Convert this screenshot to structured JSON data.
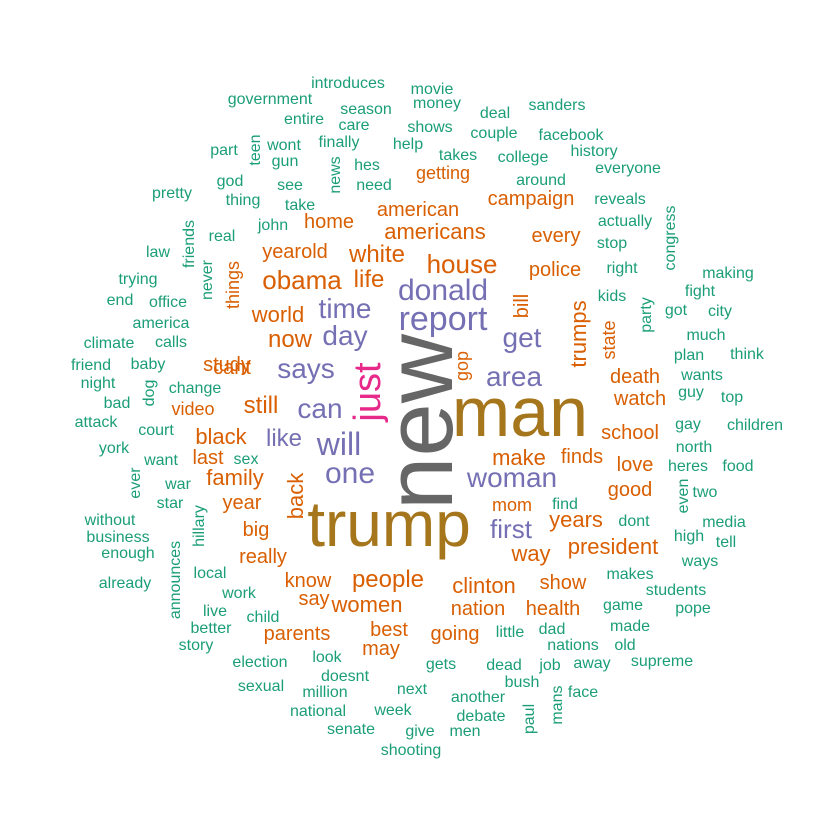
{
  "chart_data": {
    "type": "wordcloud",
    "title": "",
    "colors": {
      "tier1": "#666666",
      "tier2": "#a6761d",
      "tier3": "#e7298a",
      "tier4": "#7570b3",
      "tier5": "#d95f02",
      "tier6": "#1b9e77"
    },
    "words": [
      {
        "text": "new",
        "tier": "tier1"
      },
      {
        "text": "man",
        "tier": "tier2"
      },
      {
        "text": "trump",
        "tier": "tier2"
      },
      {
        "text": "just",
        "tier": "tier3"
      },
      {
        "text": "report",
        "tier": "tier4"
      },
      {
        "text": "donald",
        "tier": "tier4"
      },
      {
        "text": "says",
        "tier": "tier4"
      },
      {
        "text": "will",
        "tier": "tier4"
      },
      {
        "text": "one",
        "tier": "tier4"
      },
      {
        "text": "woman",
        "tier": "tier4"
      },
      {
        "text": "can",
        "tier": "tier4"
      },
      {
        "text": "time",
        "tier": "tier4"
      },
      {
        "text": "day",
        "tier": "tier4"
      },
      {
        "text": "get",
        "tier": "tier4"
      },
      {
        "text": "area",
        "tier": "tier4"
      },
      {
        "text": "like",
        "tier": "tier4"
      },
      {
        "text": "first",
        "tier": "tier4"
      },
      {
        "text": "trumps",
        "tier": "tier5"
      },
      {
        "text": "obama",
        "tier": "tier5"
      },
      {
        "text": "house",
        "tier": "tier5"
      },
      {
        "text": "life",
        "tier": "tier5"
      },
      {
        "text": "white",
        "tier": "tier5"
      },
      {
        "text": "now",
        "tier": "tier5"
      },
      {
        "text": "world",
        "tier": "tier5"
      },
      {
        "text": "still",
        "tier": "tier5"
      },
      {
        "text": "people",
        "tier": "tier5"
      },
      {
        "text": "women",
        "tier": "tier5"
      },
      {
        "text": "make",
        "tier": "tier5"
      },
      {
        "text": "clinton",
        "tier": "tier5"
      },
      {
        "text": "back",
        "tier": "tier5"
      },
      {
        "text": "family",
        "tier": "tier5"
      },
      {
        "text": "black",
        "tier": "tier5"
      },
      {
        "text": "years",
        "tier": "tier5"
      },
      {
        "text": "president",
        "tier": "tier5"
      },
      {
        "text": "way",
        "tier": "tier5"
      },
      {
        "text": "americans",
        "tier": "tier5"
      },
      {
        "text": "american",
        "tier": "tier5"
      },
      {
        "text": "campaign",
        "tier": "tier5"
      },
      {
        "text": "yearold",
        "tier": "tier5"
      },
      {
        "text": "home",
        "tier": "tier5"
      },
      {
        "text": "study",
        "tier": "tier5"
      },
      {
        "text": "video",
        "tier": "tier5"
      },
      {
        "text": "police",
        "tier": "tier5"
      },
      {
        "text": "every",
        "tier": "tier5"
      },
      {
        "text": "bill",
        "tier": "tier5"
      },
      {
        "text": "death",
        "tier": "tier5"
      },
      {
        "text": "watch",
        "tier": "tier5"
      },
      {
        "text": "school",
        "tier": "tier5"
      },
      {
        "text": "love",
        "tier": "tier5"
      },
      {
        "text": "good",
        "tier": "tier5"
      },
      {
        "text": "finds",
        "tier": "tier5"
      },
      {
        "text": "show",
        "tier": "tier5"
      },
      {
        "text": "health",
        "tier": "tier5"
      },
      {
        "text": "nation",
        "tier": "tier5"
      },
      {
        "text": "going",
        "tier": "tier5"
      },
      {
        "text": "best",
        "tier": "tier5"
      },
      {
        "text": "may",
        "tier": "tier5"
      },
      {
        "text": "parents",
        "tier": "tier5"
      },
      {
        "text": "know",
        "tier": "tier5"
      },
      {
        "text": "say",
        "tier": "tier5"
      },
      {
        "text": "really",
        "tier": "tier5"
      },
      {
        "text": "big",
        "tier": "tier5"
      },
      {
        "text": "year",
        "tier": "tier5"
      },
      {
        "text": "last",
        "tier": "tier5"
      },
      {
        "text": "cant",
        "tier": "tier5"
      },
      {
        "text": "things",
        "tier": "tier5"
      },
      {
        "text": "getting",
        "tier": "tier5"
      },
      {
        "text": "gop",
        "tier": "tier5"
      },
      {
        "text": "mom",
        "tier": "tier5"
      },
      {
        "text": "state",
        "tier": "tier5"
      },
      {
        "text": "introduces",
        "tier": "tier6"
      },
      {
        "text": "movie",
        "tier": "tier6"
      },
      {
        "text": "government",
        "tier": "tier6"
      },
      {
        "text": "money",
        "tier": "tier6"
      },
      {
        "text": "season",
        "tier": "tier6"
      },
      {
        "text": "deal",
        "tier": "tier6"
      },
      {
        "text": "sanders",
        "tier": "tier6"
      },
      {
        "text": "entire",
        "tier": "tier6"
      },
      {
        "text": "care",
        "tier": "tier6"
      },
      {
        "text": "shows",
        "tier": "tier6"
      },
      {
        "text": "couple",
        "tier": "tier6"
      },
      {
        "text": "facebook",
        "tier": "tier6"
      },
      {
        "text": "wont",
        "tier": "tier6"
      },
      {
        "text": "finally",
        "tier": "tier6"
      },
      {
        "text": "help",
        "tier": "tier6"
      },
      {
        "text": "takes",
        "tier": "tier6"
      },
      {
        "text": "college",
        "tier": "tier6"
      },
      {
        "text": "history",
        "tier": "tier6"
      },
      {
        "text": "part",
        "tier": "tier6"
      },
      {
        "text": "teen",
        "tier": "tier6"
      },
      {
        "text": "gun",
        "tier": "tier6"
      },
      {
        "text": "hes",
        "tier": "tier6"
      },
      {
        "text": "everyone",
        "tier": "tier6"
      },
      {
        "text": "news",
        "tier": "tier6"
      },
      {
        "text": "god",
        "tier": "tier6"
      },
      {
        "text": "need",
        "tier": "tier6"
      },
      {
        "text": "around",
        "tier": "tier6"
      },
      {
        "text": "pretty",
        "tier": "tier6"
      },
      {
        "text": "thing",
        "tier": "tier6"
      },
      {
        "text": "see",
        "tier": "tier6"
      },
      {
        "text": "take",
        "tier": "tier6"
      },
      {
        "text": "reveals",
        "tier": "tier6"
      },
      {
        "text": "congress",
        "tier": "tier6"
      },
      {
        "text": "friends",
        "tier": "tier6"
      },
      {
        "text": "john",
        "tier": "tier6"
      },
      {
        "text": "actually",
        "tier": "tier6"
      },
      {
        "text": "real",
        "tier": "tier6"
      },
      {
        "text": "law",
        "tier": "tier6"
      },
      {
        "text": "stop",
        "tier": "tier6"
      },
      {
        "text": "never",
        "tier": "tier6"
      },
      {
        "text": "right",
        "tier": "tier6"
      },
      {
        "text": "making",
        "tier": "tier6"
      },
      {
        "text": "trying",
        "tier": "tier6"
      },
      {
        "text": "fight",
        "tier": "tier6"
      },
      {
        "text": "end",
        "tier": "tier6"
      },
      {
        "text": "office",
        "tier": "tier6"
      },
      {
        "text": "kids",
        "tier": "tier6"
      },
      {
        "text": "party",
        "tier": "tier6"
      },
      {
        "text": "got",
        "tier": "tier6"
      },
      {
        "text": "city",
        "tier": "tier6"
      },
      {
        "text": "america",
        "tier": "tier6"
      },
      {
        "text": "climate",
        "tier": "tier6"
      },
      {
        "text": "calls",
        "tier": "tier6"
      },
      {
        "text": "much",
        "tier": "tier6"
      },
      {
        "text": "baby",
        "tier": "tier6"
      },
      {
        "text": "plan",
        "tier": "tier6"
      },
      {
        "text": "think",
        "tier": "tier6"
      },
      {
        "text": "friend",
        "tier": "tier6"
      },
      {
        "text": "night",
        "tier": "tier6"
      },
      {
        "text": "dog",
        "tier": "tier6"
      },
      {
        "text": "change",
        "tier": "tier6"
      },
      {
        "text": "wants",
        "tier": "tier6"
      },
      {
        "text": "guy",
        "tier": "tier6"
      },
      {
        "text": "top",
        "tier": "tier6"
      },
      {
        "text": "bad",
        "tier": "tier6"
      },
      {
        "text": "attack",
        "tier": "tier6"
      },
      {
        "text": "court",
        "tier": "tier6"
      },
      {
        "text": "gay",
        "tier": "tier6"
      },
      {
        "text": "children",
        "tier": "tier6"
      },
      {
        "text": "york",
        "tier": "tier6"
      },
      {
        "text": "want",
        "tier": "tier6"
      },
      {
        "text": "sex",
        "tier": "tier6"
      },
      {
        "text": "north",
        "tier": "tier6"
      },
      {
        "text": "heres",
        "tier": "tier6"
      },
      {
        "text": "food",
        "tier": "tier6"
      },
      {
        "text": "ever",
        "tier": "tier6"
      },
      {
        "text": "war",
        "tier": "tier6"
      },
      {
        "text": "star",
        "tier": "tier6"
      },
      {
        "text": "hillary",
        "tier": "tier6"
      },
      {
        "text": "find",
        "tier": "tier6"
      },
      {
        "text": "even",
        "tier": "tier6"
      },
      {
        "text": "two",
        "tier": "tier6"
      },
      {
        "text": "without",
        "tier": "tier6"
      },
      {
        "text": "business",
        "tier": "tier6"
      },
      {
        "text": "enough",
        "tier": "tier6"
      },
      {
        "text": "dont",
        "tier": "tier6"
      },
      {
        "text": "media",
        "tier": "tier6"
      },
      {
        "text": "high",
        "tier": "tier6"
      },
      {
        "text": "tell",
        "tier": "tier6"
      },
      {
        "text": "ways",
        "tier": "tier6"
      },
      {
        "text": "announces",
        "tier": "tier6"
      },
      {
        "text": "local",
        "tier": "tier6"
      },
      {
        "text": "already",
        "tier": "tier6"
      },
      {
        "text": "makes",
        "tier": "tier6"
      },
      {
        "text": "students",
        "tier": "tier6"
      },
      {
        "text": "work",
        "tier": "tier6"
      },
      {
        "text": "live",
        "tier": "tier6"
      },
      {
        "text": "child",
        "tier": "tier6"
      },
      {
        "text": "game",
        "tier": "tier6"
      },
      {
        "text": "pope",
        "tier": "tier6"
      },
      {
        "text": "better",
        "tier": "tier6"
      },
      {
        "text": "little",
        "tier": "tier6"
      },
      {
        "text": "dad",
        "tier": "tier6"
      },
      {
        "text": "made",
        "tier": "tier6"
      },
      {
        "text": "story",
        "tier": "tier6"
      },
      {
        "text": "nations",
        "tier": "tier6"
      },
      {
        "text": "old",
        "tier": "tier6"
      },
      {
        "text": "look",
        "tier": "tier6"
      },
      {
        "text": "election",
        "tier": "tier6"
      },
      {
        "text": "doesnt",
        "tier": "tier6"
      },
      {
        "text": "gets",
        "tier": "tier6"
      },
      {
        "text": "dead",
        "tier": "tier6"
      },
      {
        "text": "job",
        "tier": "tier6"
      },
      {
        "text": "away",
        "tier": "tier6"
      },
      {
        "text": "supreme",
        "tier": "tier6"
      },
      {
        "text": "sexual",
        "tier": "tier6"
      },
      {
        "text": "million",
        "tier": "tier6"
      },
      {
        "text": "bush",
        "tier": "tier6"
      },
      {
        "text": "face",
        "tier": "tier6"
      },
      {
        "text": "next",
        "tier": "tier6"
      },
      {
        "text": "another",
        "tier": "tier6"
      },
      {
        "text": "mans",
        "tier": "tier6"
      },
      {
        "text": "national",
        "tier": "tier6"
      },
      {
        "text": "week",
        "tier": "tier6"
      },
      {
        "text": "debate",
        "tier": "tier6"
      },
      {
        "text": "paul",
        "tier": "tier6"
      },
      {
        "text": "senate",
        "tier": "tier6"
      },
      {
        "text": "give",
        "tier": "tier6"
      },
      {
        "text": "men",
        "tier": "tier6"
      },
      {
        "text": "shooting",
        "tier": "tier6"
      }
    ]
  }
}
